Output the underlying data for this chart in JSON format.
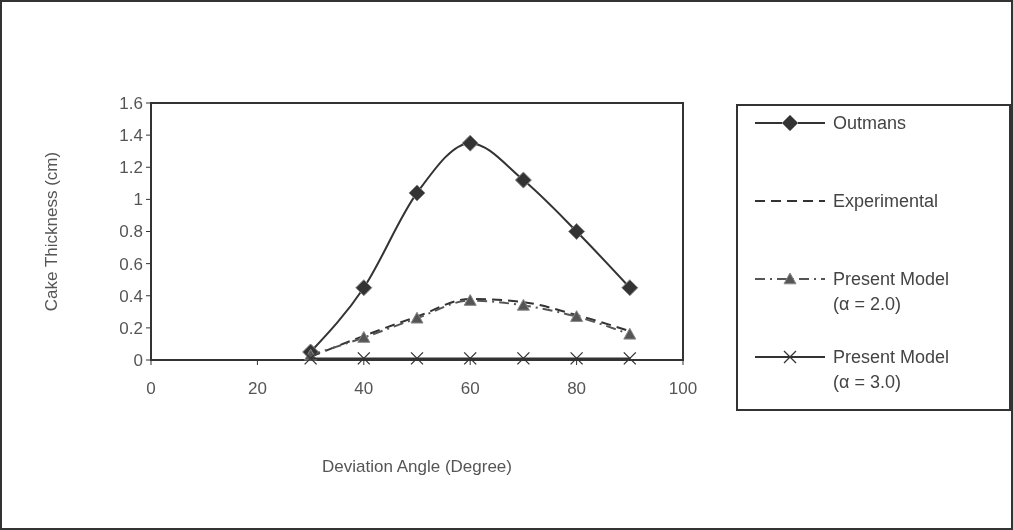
{
  "chart_data": {
    "type": "line",
    "xlabel": "Deviation Angle (Degree)",
    "ylabel": "Cake Thickness (cm)",
    "x": [
      30,
      40,
      50,
      60,
      70,
      80,
      90
    ],
    "xlim": [
      0,
      100
    ],
    "xticks": [
      0,
      20,
      40,
      60,
      80,
      100
    ],
    "ylim": [
      0,
      1.6
    ],
    "yticks": [
      0,
      {
        "value": 0.2,
        "label": "0.2"
      },
      {
        "value": 0.4,
        "label": "0.4"
      },
      {
        "value": 0.6,
        "label": "0.6"
      },
      {
        "value": 0.8,
        "label": "0.8"
      },
      1,
      {
        "value": 1.2,
        "label": "1.2"
      },
      {
        "value": 1.4,
        "label": "1.4"
      },
      {
        "value": 1.6,
        "label": "1.6"
      }
    ],
    "grid": false,
    "legend": "right",
    "series": [
      {
        "name": "Outmans",
        "color": "#333333",
        "marker": "diamond",
        "line_style": "solid",
        "values": [
          0.05,
          0.45,
          1.04,
          1.35,
          1.12,
          0.8,
          0.45
        ]
      },
      {
        "name": "Experimental",
        "color": "#333333",
        "marker": "none",
        "line_style": "dashed",
        "values": [
          0.02,
          0.15,
          0.27,
          0.38,
          0.36,
          0.28,
          0.18
        ]
      },
      {
        "name": "Present Model (α = 2.0)",
        "color": "#555555",
        "marker": "triangle",
        "line_style": "dashdot",
        "values": [
          0.03,
          0.14,
          0.26,
          0.37,
          0.34,
          0.27,
          0.16
        ]
      },
      {
        "name": "Present Model (α = 3.0)",
        "color": "#333333",
        "marker": "cross",
        "line_style": "solid",
        "values": [
          0.01,
          0.01,
          0.01,
          0.01,
          0.01,
          0.01,
          0.01
        ]
      }
    ]
  }
}
